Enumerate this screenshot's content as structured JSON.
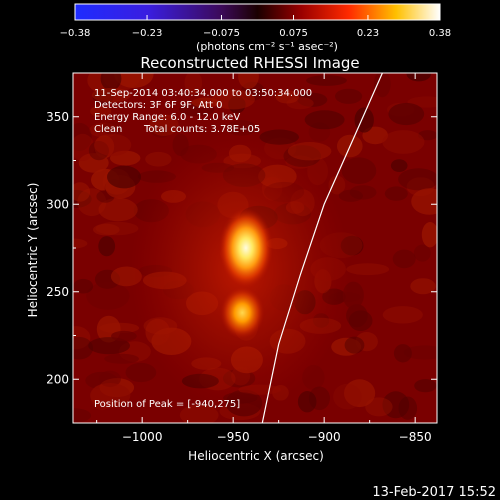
{
  "chart_data": {
    "type": "heatmap",
    "title": "Reconstructed RHESSI Image",
    "xlabel": "Heliocentric X (arcsec)",
    "ylabel": "Heliocentric Y (arcsec)",
    "xlim": [
      -1038,
      -838
    ],
    "ylim": [
      175,
      375
    ],
    "x_ticks": [
      -1000,
      -950,
      -900,
      -850
    ],
    "y_ticks": [
      200,
      250,
      300,
      350
    ],
    "x_tick_labels": [
      "−1000",
      "−950",
      "−900",
      "−850"
    ],
    "y_tick_labels": [
      "200",
      "250",
      "300",
      "350"
    ],
    "colorbar": {
      "min": -0.38,
      "max": 0.38,
      "ticks": [
        -0.38,
        -0.23,
        -0.075,
        0.075,
        0.23,
        0.38
      ],
      "tick_labels": [
        "−0.38",
        "−0.23",
        "−0.075",
        "0.075",
        "0.23",
        "0.38"
      ],
      "units_label": "(photons cm⁻² s⁻¹ asec⁻²)"
    },
    "sources": [
      {
        "x": -943,
        "y": 275,
        "peak": 0.38
      },
      {
        "x": -945,
        "y": 238,
        "peak": 0.24
      }
    ],
    "peak_position": [
      -940,
      275
    ],
    "limb_points": [
      [
        -934,
        175
      ],
      [
        -925,
        220
      ],
      [
        -913,
        260
      ],
      [
        -900,
        300
      ],
      [
        -885,
        335
      ],
      [
        -868,
        375
      ]
    ],
    "annotations": {
      "time_range": "11-Sep-2014 03:40:34.000 to 03:50:34.000",
      "detectors": "Detectors: 3F 6F 9F, Att 0",
      "energy_range": "Energy Range: 6.0 - 12.0 keV",
      "clean": "Clean",
      "total_counts": "Total counts: 3.78E+05",
      "peak_text": "Position of Peak = [-940,275]"
    }
  },
  "footer": {
    "timestamp": "13-Feb-2017 15:52"
  },
  "colors": {
    "background": "#000000",
    "foreground": "#ffffff"
  }
}
